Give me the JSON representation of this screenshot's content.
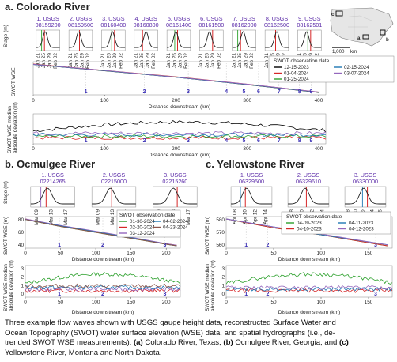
{
  "panels": {
    "a": {
      "title": "a. Colorado River",
      "gauges": [
        {
          "num": "1.",
          "label": "USGS",
          "id": "08159200",
          "dates": [
            "Jan 21",
            "Jan 25",
            "Jan 29",
            "Feb 02"
          ]
        },
        {
          "num": "2.",
          "label": "USGS",
          "id": "08159500",
          "dates": [
            "Jan 21",
            "Jan 25",
            "Jan 29",
            "Feb 02"
          ]
        },
        {
          "num": "3.",
          "label": "USGS",
          "id": "08160400",
          "dates": [
            "Jan 21",
            "Jan 25",
            "Jan 29",
            "Feb 02"
          ]
        },
        {
          "num": "4.",
          "label": "USGS",
          "id": "08160800",
          "dates": [
            "Jan 21",
            "Jan 25",
            "Jan 29",
            "Feb 02"
          ]
        },
        {
          "num": "5.",
          "label": "USGS",
          "id": "08161400",
          "dates": [
            "Jan 21",
            "Jan 25",
            "Jan 29",
            "Feb 02"
          ]
        },
        {
          "num": "6.",
          "label": "USGS",
          "id": "08161500",
          "dates": [
            "Jan 21",
            "Jan 25",
            "Jan 29",
            "Feb 02"
          ]
        },
        {
          "num": "7.",
          "label": "USGS",
          "id": "08162000",
          "dates": [
            "Jan 21",
            "Jan 25",
            "Jan 29",
            "Feb 02"
          ]
        },
        {
          "num": "8.",
          "label": "USGS",
          "id": "08162500",
          "dates": [
            "Jan 21",
            "Jan 25",
            "Jan 29",
            "Feb 02"
          ]
        },
        {
          "num": "9.",
          "label": "USGS",
          "id": "08162501",
          "dates": [
            "Jan 21",
            "Jan 25",
            "Jan 29",
            "Feb 02"
          ]
        }
      ],
      "stage_ylabel": "Stage (m)",
      "wse_ylabel": "SWOT WSE",
      "median_ylabel": "SWOT WSE median",
      "median_ylabel2": "absolute deviation (m)",
      "xlabel": "Distance downstream (km)",
      "xticks": [
        "0",
        "100",
        "200",
        "300",
        "400"
      ],
      "legend_title": "SWOT observation date",
      "legend": [
        "12-15-2023",
        "01-04-2024",
        "01-25-2024",
        "02-15-2024",
        "03-07-2024"
      ],
      "colors": [
        "#000000",
        "#d62728",
        "#2ca02c",
        "#1f77b4",
        "#9467bd"
      ],
      "gauge_marks": [
        "1",
        "2",
        "3",
        "4",
        "5",
        "6",
        "7",
        "8",
        "9"
      ],
      "map_labels": [
        "c",
        "a",
        "b"
      ],
      "map_scale": "1,000",
      "map_unit": "km"
    },
    "b": {
      "title": "b. Ocmulgee River",
      "gauges": [
        {
          "num": "1.",
          "label": "USGS",
          "id": "02214265",
          "dates": [
            "Mar 09",
            "Mar 13",
            "Mar 17"
          ]
        },
        {
          "num": "2.",
          "label": "USGS",
          "id": "02215000",
          "dates": [
            "Mar 09",
            "Mar 13",
            "Mar 17"
          ]
        },
        {
          "num": "3.",
          "label": "USGS",
          "id": "02215260",
          "dates": [
            "Mar 09",
            "Mar 13",
            "Mar 17"
          ]
        }
      ],
      "stage_ylabel": "Stage (m)",
      "wse_ylabel": "SWOT WSE (m)",
      "median_ylabel": "SWOT WSE median",
      "median_ylabel2": "absolute deviation (m)",
      "xlabel": "Distance downstream (km)",
      "xticks": [
        "0",
        "50",
        "100",
        "150",
        "200"
      ],
      "yticks_wse": [
        "40",
        "60",
        "80"
      ],
      "yticks_med": [
        "0",
        "1",
        "2",
        "3"
      ],
      "legend_title": "SWOT observation date",
      "legend": [
        "01-30-2024",
        "02-20-2024",
        "03-12-2024",
        "04-02-2024",
        "04-23-2024"
      ],
      "colors": [
        "#2ca02c",
        "#d62728",
        "#9467bd",
        "#1f77b4",
        "#8c564b"
      ],
      "gauge_marks": [
        "1",
        "2",
        "3"
      ]
    },
    "c": {
      "title": "c. Yellowstone River",
      "gauges": [
        {
          "num": "1.",
          "label": "USGS",
          "id": "06329500",
          "dates": [
            "Apr 08",
            "Apr 10",
            "Apr 12",
            "Apr 14"
          ]
        },
        {
          "num": "2.",
          "label": "USGS",
          "id": "06329610",
          "dates": [
            "Apr 08",
            "Apr 10",
            "Apr 12",
            "Apr 14"
          ]
        },
        {
          "num": "3.",
          "label": "USGS",
          "id": "06330000",
          "dates": [
            "Apr 08",
            "Apr 10",
            "Apr 12",
            "Apr 14",
            "Apr 15"
          ]
        }
      ],
      "wse_ylabel": "SWOT WSE (m)",
      "median_ylabel": "SWOT WSE median",
      "median_ylabel2": "absolute deviation (m)",
      "xlabel": "Distance downstream (km)",
      "xticks": [
        "0",
        "50",
        "100",
        "150"
      ],
      "yticks_wse": [
        "560",
        "570",
        "580"
      ],
      "yticks_med": [
        "0",
        "1",
        "2",
        "3"
      ],
      "legend_title": "SWOT observation date",
      "legend": [
        "04-09-2023",
        "04-10-2023",
        "04-11-2023",
        "04-12-2023"
      ],
      "colors": [
        "#2ca02c",
        "#d62728",
        "#1f77b4",
        "#9467bd"
      ],
      "gauge_marks": [
        "1",
        "2",
        "3"
      ]
    }
  },
  "chart_data": [
    {
      "type": "line",
      "title": "a. Colorado River",
      "xlabel": "Distance downstream (km)",
      "ylabel": "SWOT WSE",
      "xlim": [
        0,
        410
      ],
      "series": [
        {
          "name": "12-15-2023",
          "x": [
            0,
            100,
            200,
            300,
            400
          ],
          "values": [
            140,
            110,
            80,
            45,
            8
          ]
        },
        {
          "name": "01-04-2024",
          "x": [
            0,
            100,
            200,
            300,
            400
          ],
          "values": [
            142,
            112,
            82,
            47,
            10
          ]
        },
        {
          "name": "01-25-2024",
          "x": [
            0,
            100,
            200,
            300,
            400
          ],
          "values": [
            141,
            111,
            81,
            46,
            9
          ]
        },
        {
          "name": "02-15-2024",
          "x": [
            0,
            100,
            200,
            300,
            400
          ],
          "values": [
            140,
            111,
            80,
            46,
            9
          ]
        },
        {
          "name": "03-07-2024",
          "x": [
            0,
            100,
            200,
            300,
            400
          ],
          "values": [
            141,
            112,
            81,
            47,
            10
          ]
        }
      ]
    },
    {
      "type": "line",
      "title": "b. Ocmulgee River",
      "xlabel": "Distance downstream (km)",
      "ylabel": "SWOT WSE (m)",
      "xlim": [
        0,
        220
      ],
      "ylim": [
        35,
        95
      ],
      "series": [
        {
          "name": "01-30-2024",
          "x": [
            0,
            50,
            100,
            150,
            200,
            215
          ],
          "values": [
            88,
            75,
            64,
            53,
            42,
            39
          ]
        },
        {
          "name": "02-20-2024",
          "x": [
            0,
            50,
            100,
            150,
            200,
            215
          ],
          "values": [
            89,
            76,
            65,
            54,
            43,
            40
          ]
        },
        {
          "name": "03-12-2024",
          "x": [
            0,
            50,
            100,
            150,
            200,
            215
          ],
          "values": [
            89,
            77,
            66,
            55,
            43,
            40
          ]
        },
        {
          "name": "04-02-2024",
          "x": [
            0,
            50,
            100,
            150,
            200,
            215
          ],
          "values": [
            88,
            76,
            65,
            54,
            42,
            39
          ]
        },
        {
          "name": "04-23-2024",
          "x": [
            0,
            50,
            100,
            150,
            200,
            215
          ],
          "values": [
            88,
            75,
            64,
            53,
            42,
            39
          ]
        }
      ]
    },
    {
      "type": "line",
      "title": "c. Yellowstone River",
      "xlabel": "Distance downstream (km)",
      "ylabel": "SWOT WSE (m)",
      "xlim": [
        0,
        175
      ],
      "ylim": [
        555,
        590
      ],
      "series": [
        {
          "name": "04-09-2023",
          "x": [
            0,
            50,
            100,
            150,
            170
          ],
          "values": [
            588,
            579,
            572,
            564,
            561
          ]
        },
        {
          "name": "04-10-2023",
          "x": [
            0,
            50,
            100,
            150,
            170
          ],
          "values": [
            588,
            579,
            572,
            564,
            561
          ]
        },
        {
          "name": "04-11-2023",
          "x": [
            0,
            50,
            100,
            150,
            170
          ],
          "values": [
            588,
            580,
            572,
            565,
            562
          ]
        },
        {
          "name": "04-12-2023",
          "x": [
            0,
            50,
            100,
            150,
            170
          ],
          "values": [
            588,
            580,
            573,
            565,
            562
          ]
        }
      ]
    }
  ],
  "caption": {
    "line1": "Three example flow waves shown with USGS gauge height data, reconstructed Surface Water and",
    "line2": "Ocean Topography (SWOT) water surface elevation (WSE) data, and spatial hydrographs (i.e., de-",
    "line3_pre": "trended SWOT WSE measurements).",
    "a_tag": "(a)",
    "a_text": " Colorado River, Texas,",
    "b_tag": "(b)",
    "b_text": " Ocmulgee River, Georgia, and",
    "c_tag": "(c)",
    "line4": "Yellowstone River, Montana and North Dakota."
  }
}
